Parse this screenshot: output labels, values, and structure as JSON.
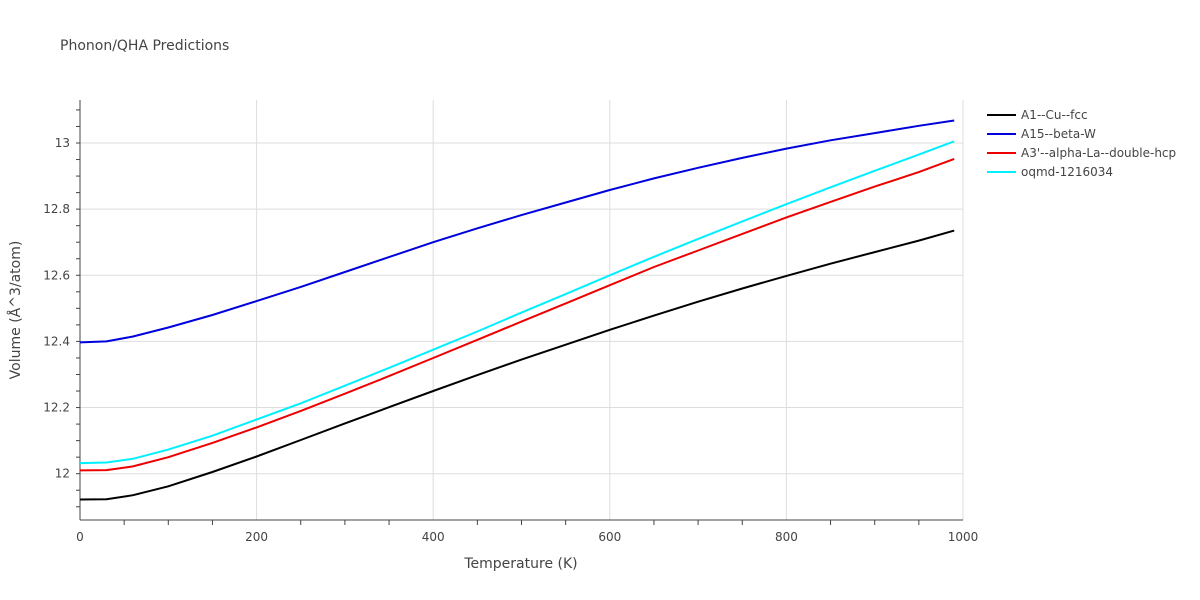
{
  "chart_data": {
    "type": "line",
    "title": "Phonon/QHA Predictions",
    "xlabel": "Temperature (K)",
    "ylabel": "Volume (Å^3/atom)",
    "xlim": [
      0,
      1000
    ],
    "ylim": [
      11.86,
      13.13
    ],
    "xticks": [
      0,
      200,
      400,
      600,
      800,
      1000
    ],
    "yticks": [
      12,
      12.2,
      12.4,
      12.6,
      12.8,
      13
    ],
    "xtick_labels": [
      "0",
      "200",
      "400",
      "600",
      "800",
      "1000"
    ],
    "ytick_labels": [
      "12",
      "12.2",
      "12.4",
      "12.6",
      "12.8",
      "13"
    ],
    "grid": true,
    "legend_position": "top-right",
    "x": [
      0,
      30,
      60,
      100,
      150,
      200,
      250,
      300,
      350,
      400,
      450,
      500,
      550,
      600,
      650,
      700,
      750,
      800,
      850,
      900,
      950,
      990
    ],
    "series": [
      {
        "name": "A1--Cu--fcc",
        "color": "#000000",
        "values": [
          11.922,
          11.923,
          11.935,
          11.962,
          12.005,
          12.052,
          12.102,
          12.152,
          12.201,
          12.25,
          12.298,
          12.345,
          12.39,
          12.435,
          12.478,
          12.52,
          12.56,
          12.598,
          12.635,
          12.67,
          12.705,
          12.735
        ]
      },
      {
        "name": "A15--beta-W",
        "color": "#0000dd",
        "values": [
          12.397,
          12.4,
          12.415,
          12.442,
          12.48,
          12.522,
          12.565,
          12.61,
          12.655,
          12.7,
          12.742,
          12.782,
          12.82,
          12.858,
          12.893,
          12.925,
          12.955,
          12.983,
          13.008,
          13.03,
          13.052,
          13.068
        ]
      },
      {
        "name": "A3'--alpha-La--double-hcp",
        "color": "#ee0000",
        "values": [
          12.01,
          12.011,
          12.022,
          12.05,
          12.093,
          12.14,
          12.19,
          12.242,
          12.295,
          12.35,
          12.405,
          12.46,
          12.515,
          12.57,
          12.625,
          12.675,
          12.725,
          12.775,
          12.822,
          12.868,
          12.912,
          12.952
        ]
      },
      {
        "name": "oqmd-1216034",
        "color": "#00f0ff",
        "values": [
          12.032,
          12.034,
          12.045,
          12.073,
          12.115,
          12.164,
          12.213,
          12.266,
          12.32,
          12.375,
          12.43,
          12.487,
          12.543,
          12.6,
          12.656,
          12.71,
          12.763,
          12.815,
          12.866,
          12.916,
          12.965,
          13.005
        ]
      }
    ]
  }
}
